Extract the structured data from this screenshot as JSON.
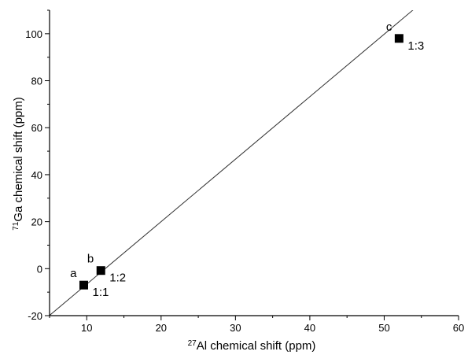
{
  "chart_data": {
    "type": "scatter",
    "xlabel": "27Al chemical shift (ppm)",
    "xlabel_sup": "27",
    "xlabel_rest": "Al chemical shift (ppm)",
    "ylabel": "71Ga chemical shift (ppm)",
    "ylabel_sup": "71",
    "ylabel_rest": "Ga chemical shift (ppm)",
    "xlim": [
      5,
      60
    ],
    "ylim": [
      -20,
      110
    ],
    "x_ticks": [
      10,
      20,
      30,
      40,
      50,
      60
    ],
    "y_ticks": [
      -20,
      0,
      20,
      40,
      60,
      80,
      100
    ],
    "x_minor_step": 5,
    "y_minor_step": 10,
    "grid": false,
    "points": [
      {
        "x": 9.6,
        "y": -7.0,
        "letter": "a",
        "ratio": "1:1"
      },
      {
        "x": 11.9,
        "y": -0.8,
        "letter": "b",
        "ratio": "1:2"
      },
      {
        "x": 52.0,
        "y": 98.0,
        "letter": "c",
        "ratio": "1:3"
      }
    ],
    "fit_line": {
      "slope": 2.66,
      "intercept": -33.2
    },
    "marker": "square",
    "marker_color": "#000000",
    "line_color": "#333333"
  }
}
